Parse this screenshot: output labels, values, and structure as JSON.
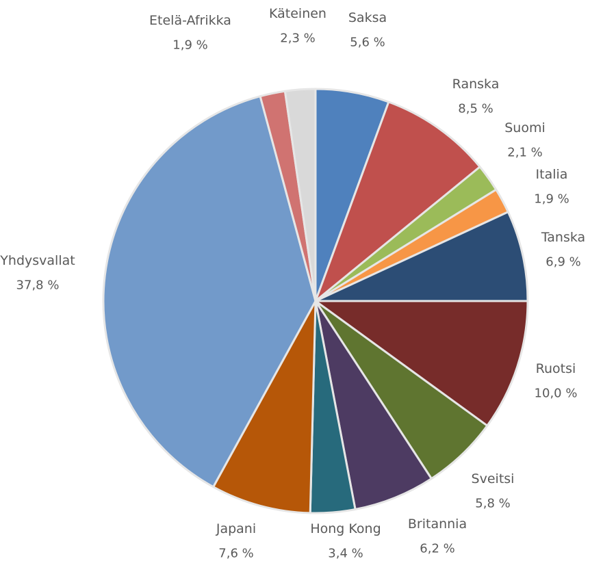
{
  "chart_data": {
    "type": "pie",
    "title": "",
    "slices": [
      {
        "label": "Saksa",
        "value": 5.6,
        "display": "5,6 %",
        "color": "#4f81bd"
      },
      {
        "label": "Ranska",
        "value": 8.5,
        "display": "8,5 %",
        "color": "#c0504d"
      },
      {
        "label": "Suomi",
        "value": 2.1,
        "display": "2,1 %",
        "color": "#9bbb59"
      },
      {
        "label": "Italia",
        "value": 1.9,
        "display": "1,9 %",
        "color": "#f79646"
      },
      {
        "label": "Tanska",
        "value": 6.9,
        "display": "6,9 %",
        "color": "#2c4d75"
      },
      {
        "label": "Ruotsi",
        "value": 10.0,
        "display": "10,0 %",
        "color": "#772c2a"
      },
      {
        "label": "Sveitsi",
        "value": 5.8,
        "display": "5,8 %",
        "color": "#5f7530"
      },
      {
        "label": "Britannia",
        "value": 6.2,
        "display": "6,2 %",
        "color": "#4d3b62"
      },
      {
        "label": "Hong Kong",
        "value": 3.4,
        "display": "3,4 %",
        "color": "#276a7c"
      },
      {
        "label": "Japani",
        "value": 7.6,
        "display": "7,6 %",
        "color": "#b65708"
      },
      {
        "label": "Yhdysvallat",
        "value": 37.8,
        "display": "37,8 %",
        "color": "#729aca"
      },
      {
        "label": "Etelä-Afrikka",
        "value": 1.9,
        "display": "1,9 %",
        "color": "#d07371"
      },
      {
        "label": "Käteinen",
        "value": 2.3,
        "display": "2,3 %",
        "color": "#d9d9d9"
      }
    ],
    "start": "12 o'clock",
    "direction": "clockwise",
    "slice_border_color": "#e6e6e6"
  }
}
